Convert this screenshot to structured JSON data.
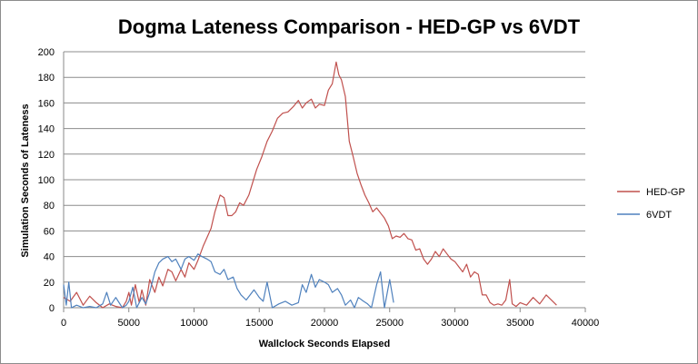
{
  "chart_data": {
    "type": "line",
    "title": "Dogma Lateness Comparison - HED-GP vs 6VDT",
    "xlabel": "Wallclock Seconds Elapsed",
    "ylabel": "Simulation Seconds of Lateness",
    "xlim": [
      0,
      40000
    ],
    "ylim": [
      0,
      200
    ],
    "xticks": [
      "0",
      "5000",
      "10000",
      "15000",
      "20000",
      "25000",
      "30000",
      "35000",
      "40000"
    ],
    "yticks": [
      "0",
      "20",
      "40",
      "60",
      "80",
      "100",
      "120",
      "140",
      "160",
      "180",
      "200"
    ],
    "grid": "horizontal",
    "legend_position": "right",
    "series": [
      {
        "name": "HED-GP",
        "color": "#c0504d",
        "x": [
          0,
          500,
          1000,
          1500,
          2000,
          2500,
          3000,
          3500,
          4000,
          4500,
          4800,
          5000,
          5200,
          5500,
          5800,
          6000,
          6300,
          6600,
          7000,
          7300,
          7600,
          8000,
          8300,
          8600,
          9000,
          9300,
          9600,
          10000,
          10300,
          10700,
          11000,
          11300,
          11600,
          12000,
          12300,
          12600,
          12900,
          13200,
          13500,
          13800,
          14200,
          14500,
          14800,
          15200,
          15600,
          16000,
          16400,
          16800,
          17200,
          17600,
          18000,
          18300,
          18600,
          19000,
          19300,
          19600,
          20000,
          20300,
          20600,
          20900,
          21100,
          21300,
          21600,
          21900,
          22200,
          22500,
          22800,
          23100,
          23400,
          23700,
          24000,
          24300,
          24600,
          24900,
          25200,
          25500,
          25800,
          26100,
          26400,
          26700,
          27000,
          27300,
          27600,
          27900,
          28200,
          28500,
          28800,
          29100,
          29400,
          29700,
          30000,
          30300,
          30600,
          30900,
          31200,
          31500,
          31800,
          32100,
          32400,
          32700,
          33000,
          33300,
          33600,
          33900,
          34200,
          34400,
          34700,
          35000,
          35500,
          36000,
          36500,
          37000,
          37500,
          37800
        ],
        "values": [
          8,
          5,
          12,
          2,
          9,
          4,
          0,
          3,
          1,
          0,
          5,
          12,
          2,
          18,
          4,
          14,
          2,
          22,
          12,
          24,
          17,
          30,
          28,
          21,
          30,
          24,
          35,
          30,
          37,
          48,
          55,
          62,
          75,
          88,
          86,
          72,
          72,
          75,
          82,
          80,
          88,
          98,
          108,
          118,
          130,
          138,
          148,
          152,
          153,
          157,
          162,
          156,
          160,
          163,
          156,
          159,
          158,
          170,
          175,
          192,
          182,
          178,
          165,
          130,
          118,
          105,
          96,
          88,
          82,
          75,
          78,
          74,
          70,
          64,
          54,
          56,
          55,
          58,
          54,
          53,
          45,
          46,
          38,
          34,
          38,
          44,
          40,
          46,
          42,
          38,
          36,
          32,
          28,
          34,
          24,
          28,
          26,
          10,
          10,
          4,
          2,
          3,
          2,
          6,
          22,
          3,
          1,
          4,
          2,
          8,
          3,
          10,
          5,
          2
        ]
      },
      {
        "name": "6VDT",
        "color": "#4f81bd",
        "x": [
          0,
          200,
          400,
          600,
          1000,
          1500,
          2000,
          2500,
          3000,
          3300,
          3600,
          4000,
          4500,
          4800,
          5000,
          5300,
          5600,
          6000,
          6300,
          6600,
          7000,
          7300,
          7600,
          8000,
          8300,
          8600,
          9000,
          9300,
          9600,
          10000,
          10300,
          10600,
          11000,
          11300,
          11600,
          12000,
          12300,
          12600,
          13000,
          13300,
          13600,
          14000,
          14300,
          14600,
          15000,
          15300,
          15600,
          16000,
          16500,
          17000,
          17500,
          18000,
          18300,
          18600,
          19000,
          19300,
          19600,
          20000,
          20300,
          20600,
          21000,
          21300,
          21600,
          22000,
          22300,
          22600,
          23000,
          23300,
          23600,
          24000,
          24300,
          24600,
          25000,
          25300
        ],
        "values": [
          18,
          2,
          20,
          0,
          2,
          0,
          1,
          0,
          3,
          12,
          2,
          8,
          0,
          2,
          5,
          16,
          0,
          8,
          3,
          12,
          28,
          35,
          38,
          40,
          36,
          38,
          30,
          38,
          40,
          37,
          42,
          40,
          38,
          36,
          28,
          26,
          30,
          22,
          24,
          15,
          10,
          6,
          10,
          14,
          8,
          5,
          20,
          0,
          3,
          5,
          2,
          4,
          18,
          12,
          26,
          16,
          22,
          20,
          18,
          12,
          15,
          10,
          2,
          6,
          0,
          8,
          5,
          3,
          0,
          18,
          28,
          0,
          22,
          4
        ]
      }
    ]
  }
}
